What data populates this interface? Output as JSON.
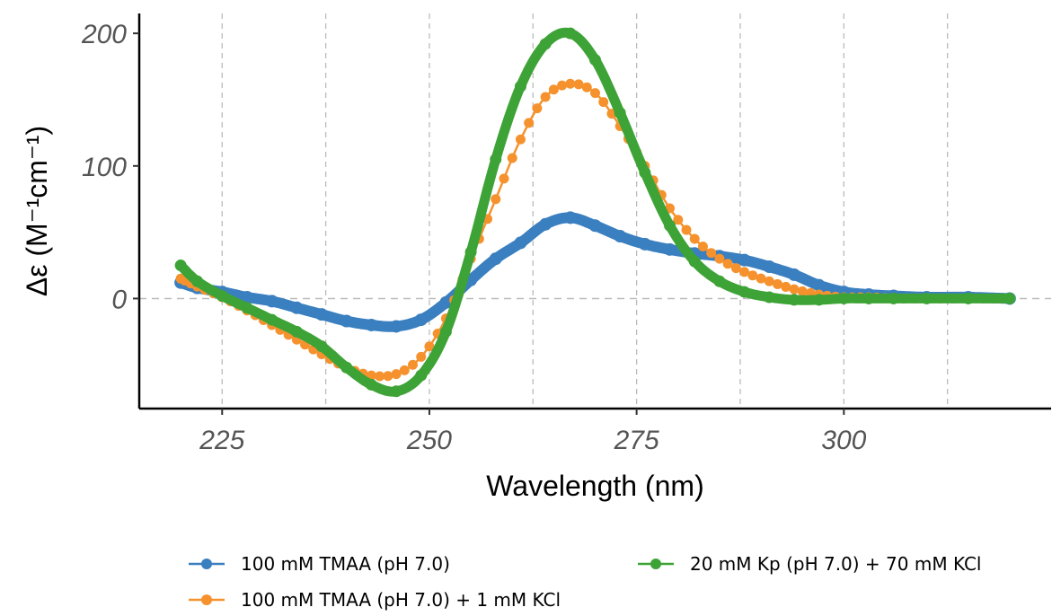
{
  "chart_data": {
    "type": "line",
    "title": "",
    "xlabel": "Wavelength (nm)",
    "ylabel": "Δε (M⁻¹cm⁻¹)",
    "xlim": [
      215,
      325
    ],
    "ylim": [
      -83,
      215
    ],
    "xticks": [
      225,
      250,
      275,
      300
    ],
    "yticks": [
      0,
      100,
      200
    ],
    "grid": "dashed vertical at x ticks and midpoints; dashed horizontal at y = 0",
    "legend_position": "bottom",
    "series": [
      {
        "name": "100 mM TMAA (pH 7.0)",
        "color": "#3a7fbf",
        "style": "thick markers",
        "x": [
          220,
          222,
          225,
          228,
          231,
          234,
          237,
          240,
          243,
          246,
          249,
          252,
          255,
          258,
          261,
          264,
          267,
          270,
          273,
          276,
          279,
          282,
          285,
          288,
          291,
          294,
          297,
          300,
          303,
          306,
          310,
          315,
          320
        ],
        "y": [
          12,
          8,
          5,
          1,
          -2,
          -7,
          -12,
          -17,
          -20,
          -21,
          -16,
          -3,
          14,
          30,
          42,
          56,
          61,
          55,
          47,
          41,
          37,
          34,
          32,
          29,
          24,
          18,
          10,
          5,
          3,
          2,
          1,
          1,
          0
        ]
      },
      {
        "name": "100 mM TMAA (pH 7.0) + 1 mM KCl",
        "color": "#f5922e",
        "style": "line with dot markers",
        "x": [
          220,
          222,
          225,
          228,
          231,
          234,
          237,
          240,
          243,
          246,
          249,
          252,
          255,
          258,
          261,
          264,
          267,
          270,
          273,
          276,
          279,
          282,
          285,
          288,
          291,
          294,
          297,
          300,
          303,
          306,
          310,
          315,
          320
        ],
        "y": [
          15,
          9,
          1,
          -9,
          -20,
          -31,
          -42,
          -52,
          -58,
          -57,
          -44,
          -15,
          30,
          75,
          120,
          152,
          162,
          155,
          130,
          100,
          68,
          45,
          30,
          20,
          13,
          7,
          3,
          1,
          1,
          0,
          0,
          0,
          0
        ]
      },
      {
        "name": "20 mM Kp (pH 7.0) + 70 mM KCl",
        "color": "#3ea336",
        "style": "thick markers",
        "x": [
          220,
          222,
          225,
          228,
          231,
          234,
          237,
          240,
          243,
          246,
          249,
          252,
          255,
          258,
          261,
          264,
          267,
          270,
          273,
          276,
          279,
          282,
          285,
          288,
          291,
          294,
          297,
          300,
          303,
          306,
          310,
          315,
          320
        ],
        "y": [
          25,
          13,
          2,
          -7,
          -16,
          -25,
          -36,
          -52,
          -65,
          -70,
          -58,
          -25,
          35,
          105,
          160,
          192,
          200,
          180,
          140,
          95,
          55,
          28,
          13,
          5,
          1,
          -1,
          -1,
          0,
          0,
          0,
          0,
          0,
          0
        ]
      }
    ]
  }
}
